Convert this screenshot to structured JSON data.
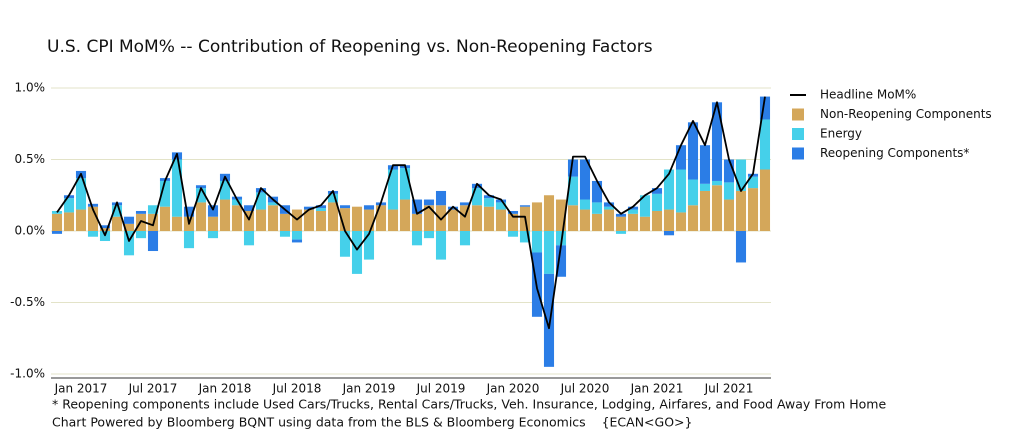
{
  "chart_data": {
    "type": "bar",
    "stacked": true,
    "title": "U.S. CPI MoM% -- Contribution of Reopening vs. Non-Reopening Factors",
    "categories": [
      null,
      null,
      "Jan 2017",
      null,
      null,
      null,
      null,
      null,
      "Jul 2017",
      null,
      null,
      null,
      null,
      null,
      "Jan 2018",
      null,
      null,
      null,
      null,
      null,
      "Jul 2018",
      null,
      null,
      null,
      null,
      null,
      "Jan 2019",
      null,
      null,
      null,
      null,
      null,
      "Jul 2019",
      null,
      null,
      null,
      null,
      null,
      "Jan 2020",
      null,
      null,
      null,
      null,
      null,
      "Jul 2020",
      null,
      null,
      null,
      null,
      null,
      "Jan 2021",
      null,
      null,
      null,
      null,
      null,
      "Jul 2021",
      null,
      null,
      null
    ],
    "series": [
      {
        "name": "Headline MoM%",
        "type": "line",
        "color": "#000000",
        "values": [
          0.13,
          0.25,
          0.4,
          0.15,
          -0.03,
          0.2,
          -0.07,
          0.07,
          0.04,
          0.35,
          0.54,
          0.05,
          0.3,
          0.15,
          0.38,
          0.22,
          0.08,
          0.3,
          0.22,
          0.15,
          0.08,
          0.15,
          0.18,
          0.28,
          0.0,
          -0.13,
          -0.02,
          0.2,
          0.46,
          0.46,
          0.12,
          0.17,
          0.08,
          0.17,
          0.1,
          0.33,
          0.25,
          0.22,
          0.1,
          0.1,
          -0.4,
          -0.68,
          -0.1,
          0.52,
          0.52,
          0.35,
          0.2,
          0.12,
          0.17,
          0.25,
          0.3,
          0.4,
          0.6,
          0.77,
          0.6,
          0.9,
          0.5,
          0.28,
          0.4,
          0.94
        ]
      },
      {
        "name": "Non-Reopening Components",
        "color": "#d4a75a",
        "values": [
          0.12,
          0.13,
          0.15,
          0.17,
          0.02,
          0.1,
          0.05,
          0.12,
          0.12,
          0.17,
          0.1,
          0.1,
          0.2,
          0.1,
          0.22,
          0.18,
          0.14,
          0.15,
          0.18,
          0.12,
          0.15,
          0.15,
          0.14,
          0.2,
          0.16,
          0.17,
          0.15,
          0.18,
          0.15,
          0.22,
          0.12,
          0.18,
          0.18,
          0.15,
          0.18,
          0.18,
          0.17,
          0.15,
          0.12,
          0.17,
          0.2,
          0.25,
          0.22,
          0.18,
          0.15,
          0.12,
          0.15,
          0.1,
          0.12,
          0.1,
          0.14,
          0.15,
          0.13,
          0.18,
          0.28,
          0.32,
          0.22,
          0.28,
          0.3,
          0.43
        ]
      },
      {
        "name": "Energy",
        "color": "#45d0ea",
        "values": [
          0.02,
          0.1,
          0.22,
          -0.04,
          -0.07,
          0.08,
          -0.17,
          -0.05,
          0.06,
          0.18,
          0.4,
          -0.12,
          0.1,
          -0.05,
          0.13,
          0.04,
          -0.1,
          0.12,
          0.02,
          -0.04,
          -0.06,
          0.0,
          0.02,
          0.06,
          -0.18,
          -0.3,
          -0.2,
          0.0,
          0.28,
          0.22,
          -0.1,
          -0.05,
          -0.2,
          0.0,
          -0.1,
          0.12,
          0.06,
          0.05,
          -0.04,
          -0.08,
          -0.15,
          -0.3,
          -0.1,
          0.2,
          0.07,
          0.08,
          0.02,
          -0.02,
          0.03,
          0.15,
          0.12,
          0.28,
          0.3,
          0.18,
          0.05,
          0.03,
          0.12,
          0.22,
          0.08,
          0.35
        ]
      },
      {
        "name": "Reopening Components*",
        "color": "#2b7de6",
        "values": [
          -0.02,
          0.02,
          0.05,
          0.02,
          0.02,
          0.02,
          0.05,
          0.02,
          -0.14,
          0.02,
          0.05,
          0.07,
          0.02,
          0.08,
          0.05,
          0.02,
          0.04,
          0.03,
          0.04,
          0.06,
          -0.02,
          0.02,
          0.02,
          0.02,
          0.02,
          0.0,
          0.03,
          0.02,
          0.03,
          0.02,
          0.1,
          0.04,
          0.1,
          0.02,
          0.02,
          0.03,
          0.02,
          0.02,
          0.02,
          0.01,
          -0.45,
          -0.65,
          -0.22,
          0.12,
          0.28,
          0.15,
          0.03,
          0.02,
          0.02,
          0.0,
          0.04,
          -0.03,
          0.17,
          0.4,
          0.27,
          0.55,
          0.16,
          -0.22,
          0.02,
          0.16
        ]
      }
    ],
    "ylim": [
      -1.0,
      1.0
    ],
    "yticks": [
      {
        "value": 1.0,
        "label": "1.0%"
      },
      {
        "value": 0.5,
        "label": "0.5%"
      },
      {
        "value": 0.0,
        "label": "0.0%"
      },
      {
        "value": -0.5,
        "label": "-0.5%"
      },
      {
        "value": -1.0,
        "label": "-1.0%"
      }
    ],
    "grid": true,
    "legend": "right",
    "footnotes": [
      "* Reopening components include Used Cars/Trucks, Rental Cars/Trucks, Veh. Insurance, Lodging, Airfares, and Food Away From Home",
      "Chart Powered by Bloomberg BQNT using data from the BLS & Bloomberg Economics    {ECAN<GO>}"
    ]
  }
}
